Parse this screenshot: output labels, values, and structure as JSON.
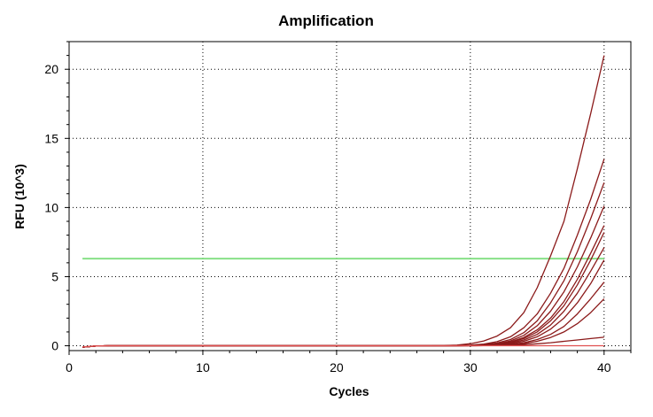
{
  "chart_data": {
    "type": "line",
    "title": "Amplification",
    "xlabel": "Cycles",
    "ylabel": "RFU (10^3)",
    "xlim": [
      0,
      42
    ],
    "ylim": [
      -0.35,
      22
    ],
    "xticks": [
      0,
      10,
      20,
      30,
      40
    ],
    "yticks": [
      0,
      5,
      10,
      15,
      20
    ],
    "grid": true,
    "legend": "none",
    "threshold": {
      "y": 6.3,
      "color": "#88e088"
    },
    "series_color": "#8b1a1a",
    "flat_series_color": "#e05050",
    "series": [
      {
        "x": [
          1,
          2,
          3,
          4,
          5,
          6,
          7,
          8,
          9,
          10,
          11,
          12,
          13,
          14,
          15,
          16,
          17,
          18,
          19,
          20,
          21,
          22,
          23,
          24,
          25,
          26,
          27,
          28,
          29,
          30,
          31,
          32,
          33,
          34,
          35,
          36,
          37,
          38,
          39,
          40
        ],
        "y": [
          -0.1,
          -0.02,
          0,
          0,
          0,
          0,
          0,
          0,
          0,
          0,
          0,
          0,
          0,
          0,
          0,
          0,
          0,
          0,
          0,
          0,
          0,
          0,
          0,
          0,
          0,
          0,
          0,
          0.02,
          0.05,
          0.15,
          0.35,
          0.7,
          1.3,
          2.4,
          4.2,
          6.5,
          9.0,
          12.8,
          16.8,
          21.0
        ]
      },
      {
        "x": [
          1,
          2,
          3,
          4,
          5,
          6,
          7,
          8,
          9,
          10,
          11,
          12,
          13,
          14,
          15,
          16,
          17,
          18,
          19,
          20,
          21,
          22,
          23,
          24,
          25,
          26,
          27,
          28,
          29,
          30,
          31,
          32,
          33,
          34,
          35,
          36,
          37,
          38,
          39,
          40
        ],
        "y": [
          -0.1,
          -0.02,
          0,
          0,
          0,
          0,
          0,
          0,
          0,
          0,
          0,
          0,
          0,
          0,
          0,
          0,
          0,
          0,
          0,
          0,
          0,
          0,
          0,
          0,
          0,
          0,
          0,
          0,
          0.02,
          0.05,
          0.12,
          0.3,
          0.65,
          1.3,
          2.3,
          3.8,
          5.6,
          8.0,
          10.6,
          13.5
        ]
      },
      {
        "x": [
          1,
          2,
          3,
          4,
          5,
          6,
          7,
          8,
          9,
          10,
          11,
          12,
          13,
          14,
          15,
          16,
          17,
          18,
          19,
          20,
          21,
          22,
          23,
          24,
          25,
          26,
          27,
          28,
          29,
          30,
          31,
          32,
          33,
          34,
          35,
          36,
          37,
          38,
          39,
          40
        ],
        "y": [
          -0.1,
          -0.02,
          0,
          0,
          0,
          0,
          0,
          0,
          0,
          0,
          0,
          0,
          0,
          0,
          0,
          0,
          0,
          0,
          0,
          0,
          0,
          0,
          0,
          0,
          0,
          0,
          0,
          0,
          0.01,
          0.03,
          0.08,
          0.2,
          0.45,
          0.95,
          1.8,
          3.1,
          4.7,
          6.8,
          9.2,
          11.8
        ]
      },
      {
        "x": [
          1,
          2,
          3,
          4,
          5,
          6,
          7,
          8,
          9,
          10,
          11,
          12,
          13,
          14,
          15,
          16,
          17,
          18,
          19,
          20,
          21,
          22,
          23,
          24,
          25,
          26,
          27,
          28,
          29,
          30,
          31,
          32,
          33,
          34,
          35,
          36,
          37,
          38,
          39,
          40
        ],
        "y": [
          -0.1,
          -0.02,
          0,
          0,
          0,
          0,
          0,
          0,
          0,
          0,
          0,
          0,
          0,
          0,
          0,
          0,
          0,
          0,
          0,
          0,
          0,
          0,
          0,
          0,
          0,
          0,
          0,
          0,
          0,
          0.02,
          0.06,
          0.15,
          0.35,
          0.75,
          1.45,
          2.5,
          3.9,
          5.7,
          7.8,
          10.1
        ]
      },
      {
        "x": [
          1,
          2,
          3,
          4,
          5,
          6,
          7,
          8,
          9,
          10,
          11,
          12,
          13,
          14,
          15,
          16,
          17,
          18,
          19,
          20,
          21,
          22,
          23,
          24,
          25,
          26,
          27,
          28,
          29,
          30,
          31,
          32,
          33,
          34,
          35,
          36,
          37,
          38,
          39,
          40
        ],
        "y": [
          -0.1,
          -0.02,
          0,
          0,
          0,
          0,
          0,
          0,
          0,
          0,
          0,
          0,
          0,
          0,
          0,
          0,
          0,
          0,
          0,
          0,
          0,
          0,
          0,
          0,
          0,
          0,
          0,
          0,
          0,
          0.02,
          0.05,
          0.12,
          0.28,
          0.6,
          1.15,
          2.0,
          3.2,
          4.8,
          6.7,
          8.7
        ]
      },
      {
        "x": [
          1,
          2,
          3,
          4,
          5,
          6,
          7,
          8,
          9,
          10,
          11,
          12,
          13,
          14,
          15,
          16,
          17,
          18,
          19,
          20,
          21,
          22,
          23,
          24,
          25,
          26,
          27,
          28,
          29,
          30,
          31,
          32,
          33,
          34,
          35,
          36,
          37,
          38,
          39,
          40
        ],
        "y": [
          -0.1,
          -0.02,
          0,
          0,
          0,
          0,
          0,
          0,
          0,
          0,
          0,
          0,
          0,
          0,
          0,
          0,
          0,
          0,
          0,
          0,
          0,
          0,
          0,
          0,
          0,
          0,
          0,
          0,
          0,
          0.01,
          0.04,
          0.1,
          0.25,
          0.52,
          1.0,
          1.8,
          2.9,
          4.4,
          6.2,
          8.2
        ]
      },
      {
        "x": [
          1,
          2,
          3,
          4,
          5,
          6,
          7,
          8,
          9,
          10,
          11,
          12,
          13,
          14,
          15,
          16,
          17,
          18,
          19,
          20,
          21,
          22,
          23,
          24,
          25,
          26,
          27,
          28,
          29,
          30,
          31,
          32,
          33,
          34,
          35,
          36,
          37,
          38,
          39,
          40
        ],
        "y": [
          -0.1,
          -0.02,
          0,
          0,
          0,
          0,
          0,
          0,
          0,
          0,
          0,
          0,
          0,
          0,
          0,
          0,
          0,
          0,
          0,
          0,
          0,
          0,
          0,
          0,
          0,
          0,
          0,
          0,
          0,
          0.01,
          0.03,
          0.08,
          0.2,
          0.42,
          0.82,
          1.5,
          2.5,
          3.8,
          5.4,
          7.1
        ]
      },
      {
        "x": [
          1,
          2,
          3,
          4,
          5,
          6,
          7,
          8,
          9,
          10,
          11,
          12,
          13,
          14,
          15,
          16,
          17,
          18,
          19,
          20,
          21,
          22,
          23,
          24,
          25,
          26,
          27,
          28,
          29,
          30,
          31,
          32,
          33,
          34,
          35,
          36,
          37,
          38,
          39,
          40
        ],
        "y": [
          -0.1,
          -0.02,
          0,
          0,
          0,
          0,
          0,
          0,
          0,
          0,
          0,
          0,
          0,
          0,
          0,
          0,
          0,
          0,
          0,
          0,
          0,
          0,
          0,
          0,
          0,
          0,
          0,
          0,
          0,
          0.01,
          0.02,
          0.06,
          0.15,
          0.32,
          0.65,
          1.2,
          2.0,
          3.1,
          4.5,
          6.2
        ]
      },
      {
        "x": [
          1,
          2,
          3,
          4,
          5,
          6,
          7,
          8,
          9,
          10,
          11,
          12,
          13,
          14,
          15,
          16,
          17,
          18,
          19,
          20,
          21,
          22,
          23,
          24,
          25,
          26,
          27,
          28,
          29,
          30,
          31,
          32,
          33,
          34,
          35,
          36,
          37,
          38,
          39,
          40
        ],
        "y": [
          -0.1,
          -0.02,
          0,
          0,
          0,
          0,
          0,
          0,
          0,
          0,
          0,
          0,
          0,
          0,
          0,
          0,
          0,
          0,
          0,
          0,
          0,
          0,
          0,
          0,
          0,
          0,
          0,
          0,
          0,
          0,
          0.01,
          0.04,
          0.1,
          0.22,
          0.45,
          0.82,
          1.4,
          2.3,
          3.4,
          4.6
        ]
      },
      {
        "x": [
          1,
          2,
          3,
          4,
          5,
          6,
          7,
          8,
          9,
          10,
          11,
          12,
          13,
          14,
          15,
          16,
          17,
          18,
          19,
          20,
          21,
          22,
          23,
          24,
          25,
          26,
          27,
          28,
          29,
          30,
          31,
          32,
          33,
          34,
          35,
          36,
          37,
          38,
          39,
          40
        ],
        "y": [
          -0.1,
          -0.02,
          0,
          0,
          0,
          0,
          0,
          0,
          0,
          0,
          0,
          0,
          0,
          0,
          0,
          0,
          0,
          0,
          0,
          0,
          0,
          0,
          0,
          0,
          0,
          0,
          0,
          0,
          0,
          0,
          0.01,
          0.03,
          0.07,
          0.15,
          0.32,
          0.6,
          1.0,
          1.6,
          2.4,
          3.4
        ]
      },
      {
        "x": [
          1,
          2,
          3,
          4,
          5,
          6,
          7,
          8,
          9,
          10,
          11,
          12,
          13,
          14,
          15,
          16,
          17,
          18,
          19,
          20,
          21,
          22,
          23,
          24,
          25,
          26,
          27,
          28,
          29,
          30,
          31,
          32,
          33,
          34,
          35,
          36,
          37,
          38,
          39,
          40
        ],
        "y": [
          -0.1,
          -0.02,
          0,
          0,
          0,
          0,
          0,
          0,
          0,
          0,
          0,
          0,
          0,
          0,
          0,
          0,
          0,
          0,
          0,
          0,
          0,
          0,
          0,
          0,
          0,
          0,
          0,
          0,
          0,
          0,
          0.01,
          0.02,
          0.04,
          0.08,
          0.14,
          0.22,
          0.32,
          0.42,
          0.52,
          0.62
        ]
      },
      {
        "flat": true,
        "x": [
          1,
          2,
          3,
          4,
          5,
          6,
          7,
          8,
          9,
          10,
          11,
          12,
          13,
          14,
          15,
          16,
          17,
          18,
          19,
          20,
          21,
          22,
          23,
          24,
          25,
          26,
          27,
          28,
          29,
          30,
          31,
          32,
          33,
          34,
          35,
          36,
          37,
          38,
          39,
          40
        ],
        "y": [
          -0.08,
          -0.02,
          0,
          0,
          0,
          0,
          0,
          0,
          0,
          0,
          0,
          0,
          0,
          0,
          0,
          0,
          0,
          0,
          0,
          0,
          0,
          0,
          0,
          0,
          0,
          0,
          0,
          0,
          0,
          0,
          0,
          0,
          0,
          0,
          0,
          0,
          0,
          0,
          0,
          0
        ]
      }
    ]
  }
}
